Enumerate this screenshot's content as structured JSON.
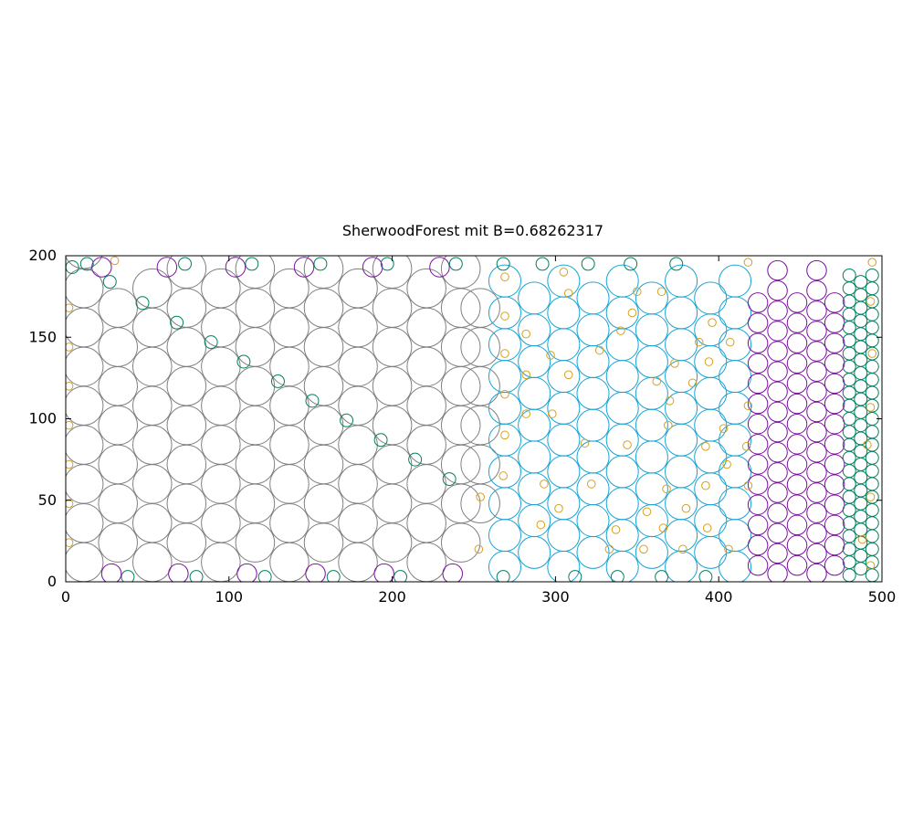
{
  "chart_data": {
    "type": "scatter",
    "title": "SherwoodForest mit B=0.68262317",
    "xlabel": "",
    "ylabel": "",
    "xlim": [
      0,
      500
    ],
    "ylim": [
      0,
      200
    ],
    "xticks": [
      "0",
      "100",
      "200",
      "300",
      "400",
      "500"
    ],
    "yticks": [
      "0",
      "50",
      "100",
      "150",
      "200"
    ],
    "grid": false,
    "marker": "open circle, radius in data units",
    "colors": {
      "gray": "#808080",
      "cyan": "#1aa3d4",
      "purple": "#7b0fa0",
      "green": "#008060",
      "orange": "#d8a020"
    },
    "series": [
      {
        "color_key": "gray",
        "r": 11.9,
        "columns": [
          {
            "x": 11,
            "y0": 12,
            "n": 9,
            "dy": 24
          },
          {
            "x": 32,
            "y0": 24,
            "n": 7,
            "dy": 24
          },
          {
            "x": 53,
            "y0": 12,
            "n": 8,
            "dy": 24
          },
          {
            "x": 74,
            "y0": 24,
            "n": 8,
            "dy": 24
          },
          {
            "x": 95,
            "y0": 12,
            "n": 8,
            "dy": 24
          },
          {
            "x": 116,
            "y0": 24,
            "n": 8,
            "dy": 24
          },
          {
            "x": 137,
            "y0": 12,
            "n": 8,
            "dy": 24
          },
          {
            "x": 158,
            "y0": 24,
            "n": 8,
            "dy": 24
          },
          {
            "x": 179,
            "y0": 12,
            "n": 8,
            "dy": 24
          },
          {
            "x": 200,
            "y0": 24,
            "n": 8,
            "dy": 24
          },
          {
            "x": 221,
            "y0": 12,
            "n": 8,
            "dy": 24
          },
          {
            "x": 242,
            "y0": 24,
            "n": 8,
            "dy": 24
          },
          {
            "x": 254,
            "y0": 48,
            "n": 6,
            "dy": 24
          }
        ]
      },
      {
        "color_key": "cyan",
        "r": 9.8,
        "columns": [
          {
            "x": 269,
            "y0": 9,
            "n": 10,
            "dy": 19.5
          },
          {
            "x": 287,
            "y0": 18,
            "n": 9,
            "dy": 19.5
          },
          {
            "x": 305,
            "y0": 9,
            "n": 10,
            "dy": 19.5
          },
          {
            "x": 323,
            "y0": 18,
            "n": 9,
            "dy": 19.5
          },
          {
            "x": 341,
            "y0": 9,
            "n": 10,
            "dy": 19.5
          },
          {
            "x": 359,
            "y0": 18,
            "n": 9,
            "dy": 19.5
          },
          {
            "x": 377,
            "y0": 9,
            "n": 10,
            "dy": 19.5
          },
          {
            "x": 395,
            "y0": 18,
            "n": 9,
            "dy": 19.5
          },
          {
            "x": 410,
            "y0": 9,
            "n": 10,
            "dy": 19.5
          }
        ]
      },
      {
        "color_key": "purple",
        "r": 6.0,
        "points": [
          [
            28,
            5
          ],
          [
            69,
            5
          ],
          [
            111,
            5
          ],
          [
            153,
            5
          ],
          [
            195,
            5
          ],
          [
            237,
            5
          ],
          [
            22,
            193
          ],
          [
            62,
            193
          ],
          [
            104,
            193
          ],
          [
            146,
            193
          ],
          [
            188,
            193
          ],
          [
            229,
            193
          ]
        ],
        "columns": [
          {
            "x": 424,
            "y0": 10,
            "n": 14,
            "dy": 12.4
          },
          {
            "x": 436,
            "y0": 5,
            "n": 16,
            "dy": 12.4
          },
          {
            "x": 448,
            "y0": 10,
            "n": 14,
            "dy": 12.4
          },
          {
            "x": 460,
            "y0": 5,
            "n": 16,
            "dy": 12.4
          },
          {
            "x": 471,
            "y0": 10,
            "n": 14,
            "dy": 12.4
          }
        ]
      },
      {
        "color_key": "green",
        "r": 3.9,
        "points": [
          [
            4,
            193
          ],
          [
            13,
            195
          ],
          [
            27,
            184
          ],
          [
            47,
            171
          ],
          [
            68,
            159
          ],
          [
            89,
            147
          ],
          [
            109,
            135
          ],
          [
            130,
            123
          ],
          [
            151,
            111
          ],
          [
            172,
            99
          ],
          [
            193,
            87
          ],
          [
            214,
            75
          ],
          [
            235,
            63
          ],
          [
            38,
            3
          ],
          [
            80,
            3
          ],
          [
            122,
            3
          ],
          [
            164,
            3
          ],
          [
            205,
            3
          ],
          [
            268,
            3
          ],
          [
            312,
            3
          ],
          [
            338,
            3
          ],
          [
            365,
            3
          ],
          [
            392,
            3
          ],
          [
            73,
            195
          ],
          [
            114,
            195
          ],
          [
            156,
            195
          ],
          [
            197,
            195
          ],
          [
            239,
            195
          ],
          [
            268,
            195
          ],
          [
            292,
            195
          ],
          [
            320,
            195
          ],
          [
            346,
            195
          ],
          [
            374,
            195
          ]
        ],
        "columns": [
          {
            "x": 480,
            "y0": 4,
            "n": 24,
            "dy": 8.0
          },
          {
            "x": 487,
            "y0": 8,
            "n": 23,
            "dy": 8.0
          },
          {
            "x": 494,
            "y0": 4,
            "n": 24,
            "dy": 8.0
          }
        ]
      },
      {
        "color_key": "orange",
        "r": 2.4,
        "points": [
          [
            2,
            24
          ],
          [
            2,
            48
          ],
          [
            2,
            72
          ],
          [
            2,
            96
          ],
          [
            2,
            120
          ],
          [
            2,
            144
          ],
          [
            2,
            168
          ],
          [
            30,
            197
          ],
          [
            253,
            20
          ],
          [
            254,
            52
          ],
          [
            268,
            65
          ],
          [
            269,
            90
          ],
          [
            269,
            115
          ],
          [
            269,
            140
          ],
          [
            269,
            163
          ],
          [
            269,
            187
          ],
          [
            282,
            152
          ],
          [
            282,
            127
          ],
          [
            282,
            103
          ],
          [
            291,
            35
          ],
          [
            293,
            60
          ],
          [
            302,
            45
          ],
          [
            298,
            103
          ],
          [
            297,
            139
          ],
          [
            305,
            190
          ],
          [
            308,
            127
          ],
          [
            308,
            177
          ],
          [
            318,
            85
          ],
          [
            322,
            60
          ],
          [
            327,
            142
          ],
          [
            333,
            20
          ],
          [
            337,
            32
          ],
          [
            340,
            154
          ],
          [
            344,
            84
          ],
          [
            347,
            165
          ],
          [
            350,
            178
          ],
          [
            354,
            20
          ],
          [
            356,
            43
          ],
          [
            362,
            123
          ],
          [
            365,
            178
          ],
          [
            366,
            33
          ],
          [
            368,
            57
          ],
          [
            369,
            96
          ],
          [
            370,
            111
          ],
          [
            373,
            134
          ],
          [
            378,
            20
          ],
          [
            380,
            45
          ],
          [
            384,
            122
          ],
          [
            388,
            147
          ],
          [
            392,
            59
          ],
          [
            392,
            83
          ],
          [
            393,
            33
          ],
          [
            394,
            135
          ],
          [
            396,
            159
          ],
          [
            403,
            94
          ],
          [
            405,
            72
          ],
          [
            406,
            20
          ],
          [
            407,
            147
          ],
          [
            417,
            83
          ],
          [
            418,
            59
          ],
          [
            418,
            108
          ],
          [
            418,
            196
          ],
          [
            488,
            26
          ],
          [
            491,
            84
          ],
          [
            493,
            10
          ],
          [
            493,
            52
          ],
          [
            493,
            107
          ],
          [
            493,
            172
          ],
          [
            494,
            140
          ],
          [
            494,
            196
          ]
        ]
      }
    ]
  }
}
